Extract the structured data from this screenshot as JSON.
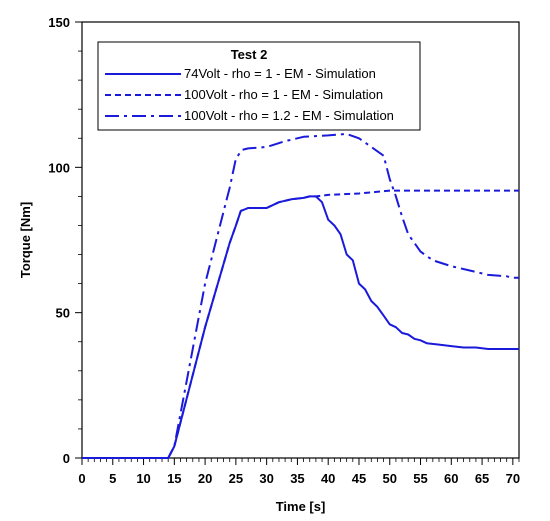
{
  "chart_data": {
    "type": "line",
    "title": "",
    "xlabel": "Time [s]",
    "ylabel": "Torque [Nm]",
    "xlim": [
      0,
      71
    ],
    "ylim": [
      0,
      150
    ],
    "x_ticks": [
      0,
      5,
      10,
      15,
      20,
      25,
      30,
      35,
      40,
      45,
      50,
      55,
      60,
      65,
      70
    ],
    "y_ticks": [
      0,
      50,
      100,
      150
    ],
    "grid": false,
    "legend": {
      "title": "Test 2",
      "placement": "top-left"
    },
    "series": [
      {
        "name": "74Volt -  rho = 1 -  EM - Simulation",
        "style": "solid",
        "color": "#1a1adb",
        "x": [
          0,
          14,
          15,
          20,
          24,
          25,
          25.8,
          27,
          30,
          32,
          34,
          36,
          37,
          38,
          39,
          40,
          41,
          42,
          43,
          44,
          45,
          46,
          47,
          48,
          49,
          50,
          51,
          52,
          53,
          54,
          55,
          56,
          58,
          60,
          62,
          64,
          66,
          68,
          70,
          71
        ],
        "y": [
          0,
          0,
          4,
          45,
          74,
          80,
          85,
          86,
          86,
          88,
          89,
          89.5,
          90,
          90,
          88,
          82,
          80,
          77,
          70,
          68,
          60,
          58,
          54,
          52,
          49,
          46,
          45,
          43,
          42.5,
          41,
          40.5,
          39.5,
          39,
          38.5,
          38,
          38,
          37.5,
          37.5,
          37.5,
          37.5
        ]
      },
      {
        "name": "100Volt -  rho = 1 -  EM - Simulation",
        "style": "dash",
        "color": "#1a1adb",
        "x": [
          0,
          14,
          15,
          20,
          24,
          25,
          25.8,
          27,
          30,
          32,
          34,
          36,
          37,
          38,
          40,
          45,
          50,
          55,
          60,
          65,
          71
        ],
        "y": [
          0,
          0,
          4,
          45,
          74,
          80,
          85,
          86,
          86,
          88,
          89,
          89.5,
          90,
          90,
          90.5,
          91,
          92,
          92,
          92,
          92,
          92
        ]
      },
      {
        "name": "100Volt -  rho = 1.2 -  EM - Simulation",
        "style": "dashdot",
        "color": "#1a1adb",
        "x": [
          0,
          14,
          15,
          20,
          24,
          25,
          26,
          27,
          30,
          33,
          36,
          40,
          43,
          45,
          47,
          49,
          50,
          51,
          52,
          53,
          55,
          57,
          60,
          63,
          66,
          69,
          70,
          71
        ],
        "y": [
          0,
          0,
          4,
          60,
          93,
          103,
          106,
          106.5,
          107,
          109,
          110.5,
          111,
          111.5,
          110,
          107,
          104,
          96,
          90,
          83,
          77,
          71,
          68,
          66,
          64.5,
          63,
          62.5,
          62,
          62
        ]
      }
    ]
  }
}
